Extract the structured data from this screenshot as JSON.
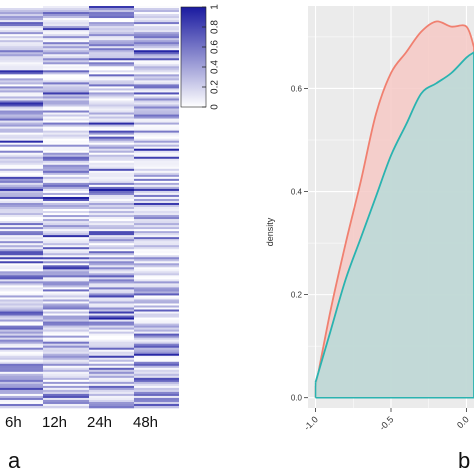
{
  "panels": {
    "a": "a",
    "b": "b"
  },
  "colors": {
    "heat_low": "#ffffff",
    "heat_high": "#1a1aa0",
    "panel_bg": "#ebebeb",
    "grid": "#ffffff",
    "series_red": "#f08070",
    "series_teal": "#2ab3b0",
    "fill_red": "#f6c9c5",
    "fill_teal": "#b5dcd9"
  },
  "chart_data": [
    {
      "type": "heatmap",
      "columns": [
        "6h",
        "12h",
        "24h",
        "48h"
      ],
      "colorbar": {
        "ticks": [
          "1",
          "0.8",
          "0.6",
          "0.4",
          "0.2",
          "0"
        ],
        "range": [
          0,
          1
        ]
      },
      "title": "",
      "xlabel": "",
      "ylabel": ""
    },
    {
      "type": "area",
      "xlabel": "",
      "ylabel": "density",
      "xlim": [
        -1.05,
        0.05
      ],
      "ylim": [
        -0.02,
        0.76
      ],
      "xticks": [
        "-1.0",
        "-0.5",
        "0.0"
      ],
      "yticks": [
        "0.0",
        "0.2",
        "0.4",
        "0.6"
      ],
      "grid": true,
      "series": [
        {
          "color": "#f08070",
          "x": [
            -1.0,
            -0.9,
            -0.8,
            -0.7,
            -0.6,
            -0.5,
            -0.4,
            -0.3,
            -0.2,
            -0.1,
            0.0,
            0.05
          ],
          "y": [
            0.02,
            0.17,
            0.3,
            0.42,
            0.55,
            0.63,
            0.67,
            0.71,
            0.73,
            0.72,
            0.72,
            0.68
          ]
        },
        {
          "color": "#2ab3b0",
          "x": [
            -1.0,
            -0.9,
            -0.8,
            -0.7,
            -0.6,
            -0.5,
            -0.4,
            -0.3,
            -0.2,
            -0.1,
            0.0,
            0.05
          ],
          "y": [
            0.03,
            0.13,
            0.23,
            0.31,
            0.39,
            0.47,
            0.53,
            0.59,
            0.61,
            0.63,
            0.66,
            0.67
          ]
        }
      ]
    }
  ]
}
